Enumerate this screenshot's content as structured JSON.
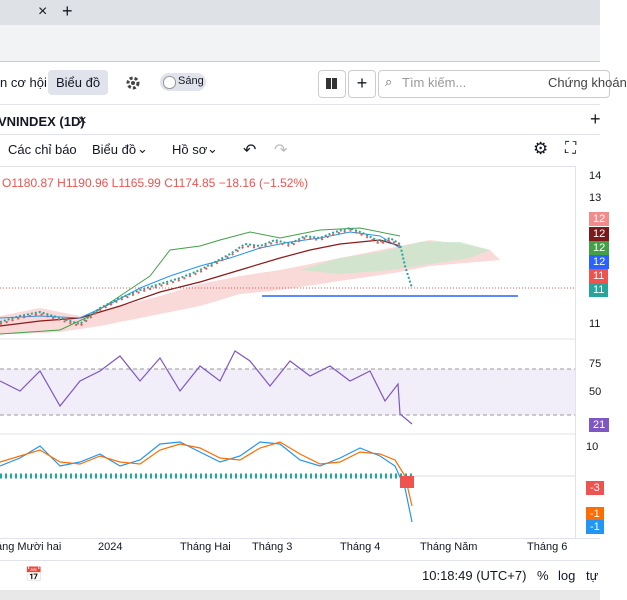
{
  "tabs": {
    "close": "×",
    "new": "+"
  },
  "toolbar": {
    "nav_opportunities": "n cơ hội",
    "nav_chart": "Biểu đồ",
    "theme": "Sáng",
    "search": "Tìm kiếm...",
    "stocks": "Chứng khoán"
  },
  "chart_tab": {
    "symbol": "VNINDEX (1D)",
    "close": "×",
    "plus": "+"
  },
  "chart_toolbar": {
    "indicators": "Các chỉ báo",
    "chart": "Biểu đồ",
    "profile": "Hồ sơ"
  },
  "ohlc": {
    "open": "O1180.87",
    "high": "H1190.96",
    "low": "L1165.99",
    "close": "C1174.85",
    "change": "−18.16 (−1.52%)"
  },
  "price_axis": [
    "14",
    "13",
    "12",
    "12",
    "12",
    "12",
    "11",
    "11",
    "11"
  ],
  "rsi_axis": [
    "75",
    "50",
    "21"
  ],
  "macd_axis": [
    "10",
    "-3",
    "-1",
    "-1"
  ],
  "time_axis": [
    "áng Mười hai",
    "2024",
    "Tháng Hai",
    "Tháng 3",
    "Tháng 4",
    "Tháng Năm",
    "Tháng 6"
  ],
  "status": {
    "time": "10:18:49 (UTC+7)",
    "percent": "%",
    "log": "log",
    "auto": "tự"
  }
}
